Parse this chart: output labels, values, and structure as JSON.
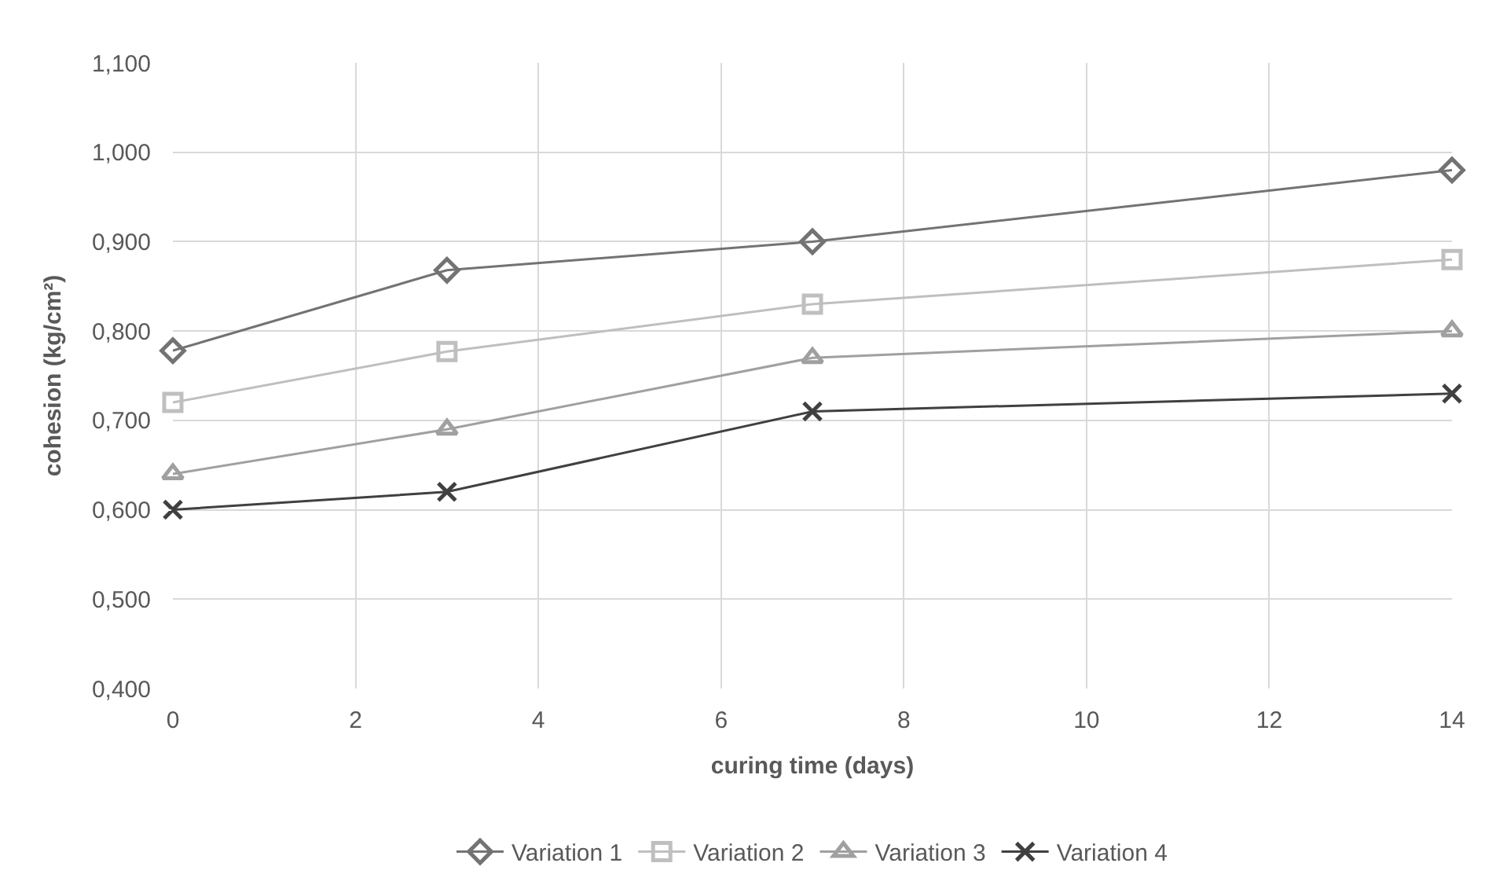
{
  "chart_data": {
    "type": "line",
    "xlabel": "curing time (days)",
    "ylabel": "cohesion (kg/cm²)",
    "x": [
      0,
      3,
      7,
      14
    ],
    "series": [
      {
        "name": "Variation 1",
        "color": "#737373",
        "marker": "diamond",
        "values": [
          0.778,
          0.868,
          0.9,
          0.98
        ]
      },
      {
        "name": "Variation 2",
        "color": "#bfbfbf",
        "marker": "square",
        "values": [
          0.72,
          0.777,
          0.83,
          0.88
        ]
      },
      {
        "name": "Variation 3",
        "color": "#a0a0a0",
        "marker": "triangle",
        "values": [
          0.64,
          0.69,
          0.77,
          0.8
        ]
      },
      {
        "name": "Variation 4",
        "color": "#404040",
        "marker": "cross",
        "values": [
          0.6,
          0.62,
          0.71,
          0.73
        ]
      }
    ],
    "xlim": [
      0,
      14
    ],
    "xticks": [
      0,
      2,
      4,
      6,
      8,
      10,
      12,
      14
    ],
    "ylim": [
      0.4,
      1.1
    ],
    "yticks": [
      {
        "value": 0.4,
        "label": "0,400"
      },
      {
        "value": 0.5,
        "label": "0,500"
      },
      {
        "value": 0.6,
        "label": "0,600"
      },
      {
        "value": 0.7,
        "label": "0,700"
      },
      {
        "value": 0.8,
        "label": "0,800"
      },
      {
        "value": 0.9,
        "label": "0,900"
      },
      {
        "value": 1.0,
        "label": "1,000"
      },
      {
        "value": 1.1,
        "label": "1,100"
      }
    ],
    "grid": true,
    "legend": "bottom",
    "line_style": "solid"
  }
}
